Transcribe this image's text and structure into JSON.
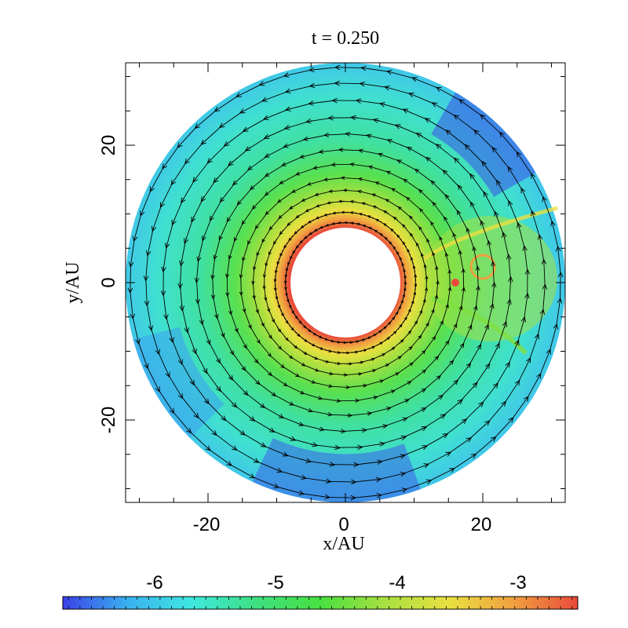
{
  "chart_data": {
    "type": "heatmap",
    "title": "t = 0.250",
    "xlabel": "x/AU",
    "ylabel": "y/AU",
    "xlim": [
      -32,
      32
    ],
    "ylim": [
      -32,
      32
    ],
    "x_ticks": [
      -20,
      0,
      20
    ],
    "y_ticks": [
      -20,
      0,
      20
    ],
    "disk": {
      "inner_radius": 8,
      "outer_radius": 32
    },
    "planet": {
      "x": 16,
      "y": 0
    },
    "vector_field": "velocity arrows, counter-clockwise",
    "colorbar": {
      "ticks": [
        -6,
        -5,
        -4,
        -3
      ],
      "range": [
        -6.8,
        -2.3
      ],
      "colormap": [
        "#3a40e8",
        "#3ab0f0",
        "#3ee8e0",
        "#3ee080",
        "#48e040",
        "#a8e040",
        "#e8e040",
        "#f0a040",
        "#e84a3a"
      ]
    }
  }
}
